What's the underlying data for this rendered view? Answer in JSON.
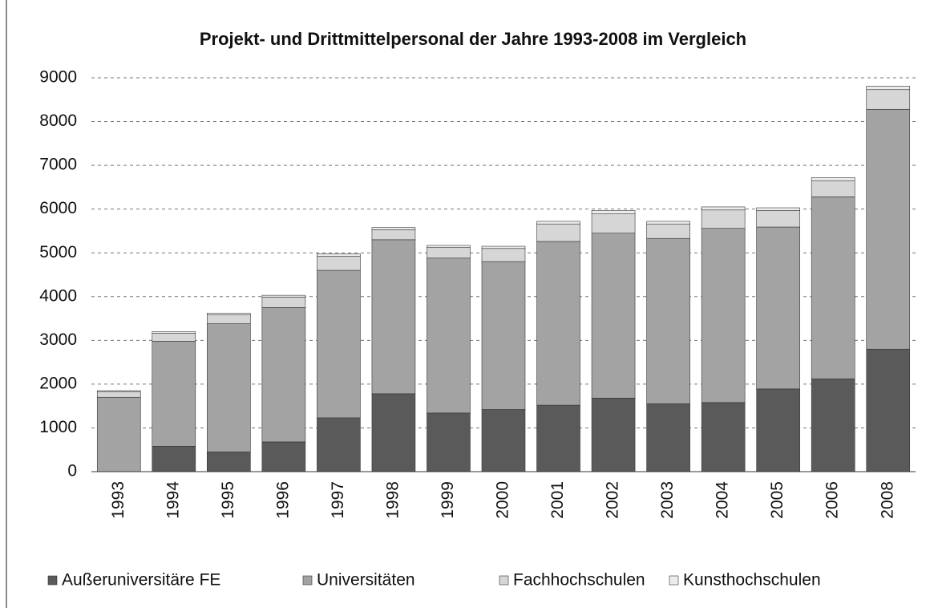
{
  "chart_data": {
    "type": "stacked_bar",
    "title": "Projekt- und Drittmittelpersonal der Jahre 1993-2008 im Vergleich",
    "categories": [
      "1993",
      "1994",
      "1995",
      "1996",
      "1997",
      "1998",
      "1999",
      "2000",
      "2001",
      "2002",
      "2003",
      "2004",
      "2005",
      "2006",
      "2008"
    ],
    "series": [
      {
        "name": "Außeruniversitäre FE",
        "color": "#5a5a5a",
        "values": [
          0,
          580,
          450,
          680,
          1230,
          1780,
          1340,
          1420,
          1520,
          1680,
          1550,
          1580,
          1890,
          2120,
          2800
        ]
      },
      {
        "name": "Universitäten",
        "color": "#a3a3a3",
        "values": [
          1700,
          2400,
          2930,
          3070,
          3370,
          3520,
          3540,
          3380,
          3740,
          3770,
          3780,
          3980,
          3700,
          4160,
          5480
        ]
      },
      {
        "name": "Fachhochschulen",
        "color": "#d6d6d6",
        "values": [
          130,
          180,
          200,
          240,
          320,
          230,
          240,
          300,
          400,
          440,
          330,
          420,
          380,
          370,
          450
        ]
      },
      {
        "name": "Kunsthochschulen",
        "color": "#ececec",
        "values": [
          20,
          40,
          40,
          40,
          60,
          50,
          50,
          50,
          60,
          80,
          60,
          70,
          60,
          70,
          80
        ]
      }
    ],
    "ylim": [
      0,
      9000
    ],
    "yticks": [
      0,
      1000,
      2000,
      3000,
      4000,
      5000,
      6000,
      7000,
      8000,
      9000
    ],
    "grid": true,
    "legend": "bottom"
  }
}
